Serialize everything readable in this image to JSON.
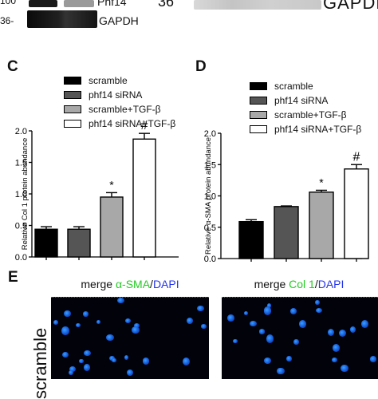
{
  "top": {
    "left_marker_upper": "100",
    "left_marker_lower": "36-",
    "left_label_upper": "Phf14",
    "left_label_lower": "GAPDH",
    "right_marker": "36",
    "right_label": "GAPDH"
  },
  "colors": {
    "scramble": "#000000",
    "phf14_sirna": "#555555",
    "scramble_tgf": "#a8a8a8",
    "phf14_sirna_tgf": "#ffffff",
    "alpha_sma_green": "#22cc22",
    "dapi_blue": "#2233ee"
  },
  "chart_data": [
    {
      "panel": "C",
      "type": "bar",
      "categories": [
        "scramble",
        "phf14 siRNA",
        "scramble+TGF-β",
        "phf14 siRNA+TGF-β"
      ],
      "values": [
        0.44,
        0.44,
        0.95,
        1.87
      ],
      "errors": [
        0.04,
        0.04,
        0.07,
        0.09
      ],
      "annotations": [
        "",
        "",
        "*",
        "#"
      ],
      "ylabel": "Relative Col 1 protein abundance",
      "yticks": [
        "0.0",
        "0.5",
        "1.0",
        "1.5",
        "2.0"
      ],
      "ylim": [
        0,
        2.0
      ],
      "legend": [
        "scramble",
        "phf14 siRNA",
        "scramble+TGF-β",
        "phf14 siRNA+TGF-β"
      ]
    },
    {
      "panel": "D",
      "type": "bar",
      "categories": [
        "scramble",
        "phf14 siRNA",
        "scramble+TGF-β",
        "phf14 siRNA+TGF-β"
      ],
      "values": [
        0.59,
        0.83,
        1.06,
        1.43
      ],
      "errors": [
        0.03,
        0.01,
        0.03,
        0.07
      ],
      "annotations": [
        "",
        "",
        "*",
        "#"
      ],
      "ylabel": "Relative α-SMA protein abundance",
      "yticks": [
        "0.0",
        "0.5",
        "1.0",
        "1.5",
        "2.0"
      ],
      "ylim": [
        0,
        2.0
      ],
      "legend": [
        "scramble",
        "phf14 siRNA",
        "scramble+TGF-β",
        "phf14 siRNA+TGF-β"
      ]
    }
  ],
  "panel_e": {
    "letter": "E",
    "left_title_prefix": "merge ",
    "left_title_marker": "α-SMA",
    "left_title_sep": "/",
    "left_title_dapi": "DAPI",
    "right_title_prefix": "merge ",
    "right_title_marker": "Col 1",
    "right_title_sep": "/",
    "right_title_dapi": "DAPI",
    "row_label": "scramble"
  }
}
